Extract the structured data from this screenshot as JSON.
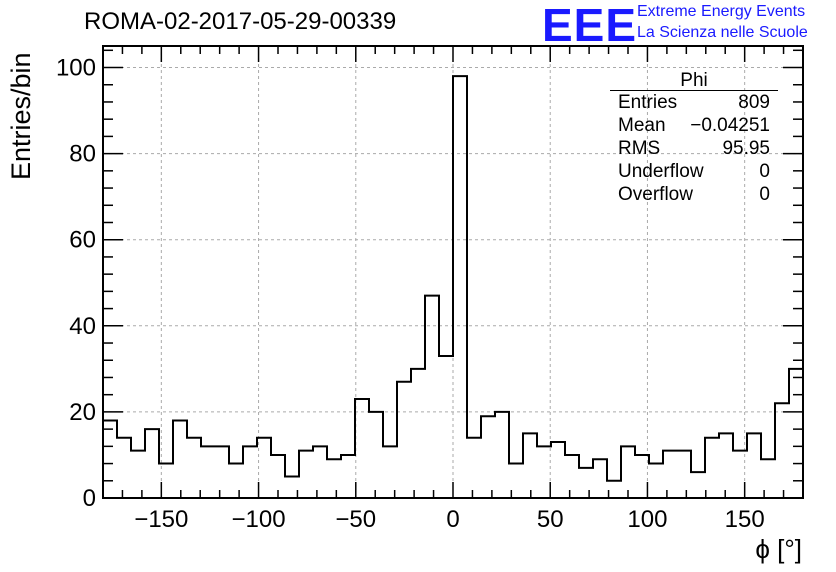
{
  "header": {
    "run_title": "ROMA-02-2017-05-29-00339",
    "logo_text": "EEE",
    "logo_line1": "Extreme Energy Events",
    "logo_line2": "La Scienza nelle Scuole",
    "logo_color": "#1a1aff"
  },
  "stats_box": {
    "title": "Phi",
    "rows": [
      {
        "label": "Entries",
        "value": "809"
      },
      {
        "label": "Mean",
        "value": "−0.04251"
      },
      {
        "label": "RMS",
        "value": "95.95"
      },
      {
        "label": "Underflow",
        "value": "0"
      },
      {
        "label": "Overflow",
        "value": "0"
      }
    ]
  },
  "chart_data": {
    "type": "bar",
    "xlabel": "ϕ [°]",
    "ylabel": "Entries/bin",
    "xlim": [
      -180,
      180
    ],
    "ylim": [
      0,
      105
    ],
    "grid": true,
    "x_ticks": [
      -150,
      -100,
      -50,
      0,
      50,
      100,
      150
    ],
    "x_tick_labels": [
      "−150",
      "−100",
      "−50",
      "0",
      "50",
      "100",
      "150"
    ],
    "y_ticks": [
      0,
      20,
      40,
      60,
      80,
      100
    ],
    "y_tick_labels": [
      "0",
      "20",
      "40",
      "60",
      "80",
      "100"
    ],
    "bin_width": 7.2,
    "values": [
      18,
      14,
      11,
      16,
      8,
      18,
      14,
      12,
      12,
      8,
      12,
      14,
      10,
      5,
      11,
      12,
      9,
      10,
      23,
      20,
      12,
      27,
      30,
      47,
      33,
      98,
      14,
      19,
      20,
      8,
      15,
      12,
      13,
      10,
      7,
      9,
      4,
      12,
      10,
      8,
      11,
      11,
      6,
      14,
      15,
      11,
      15,
      9,
      22,
      30
    ]
  }
}
